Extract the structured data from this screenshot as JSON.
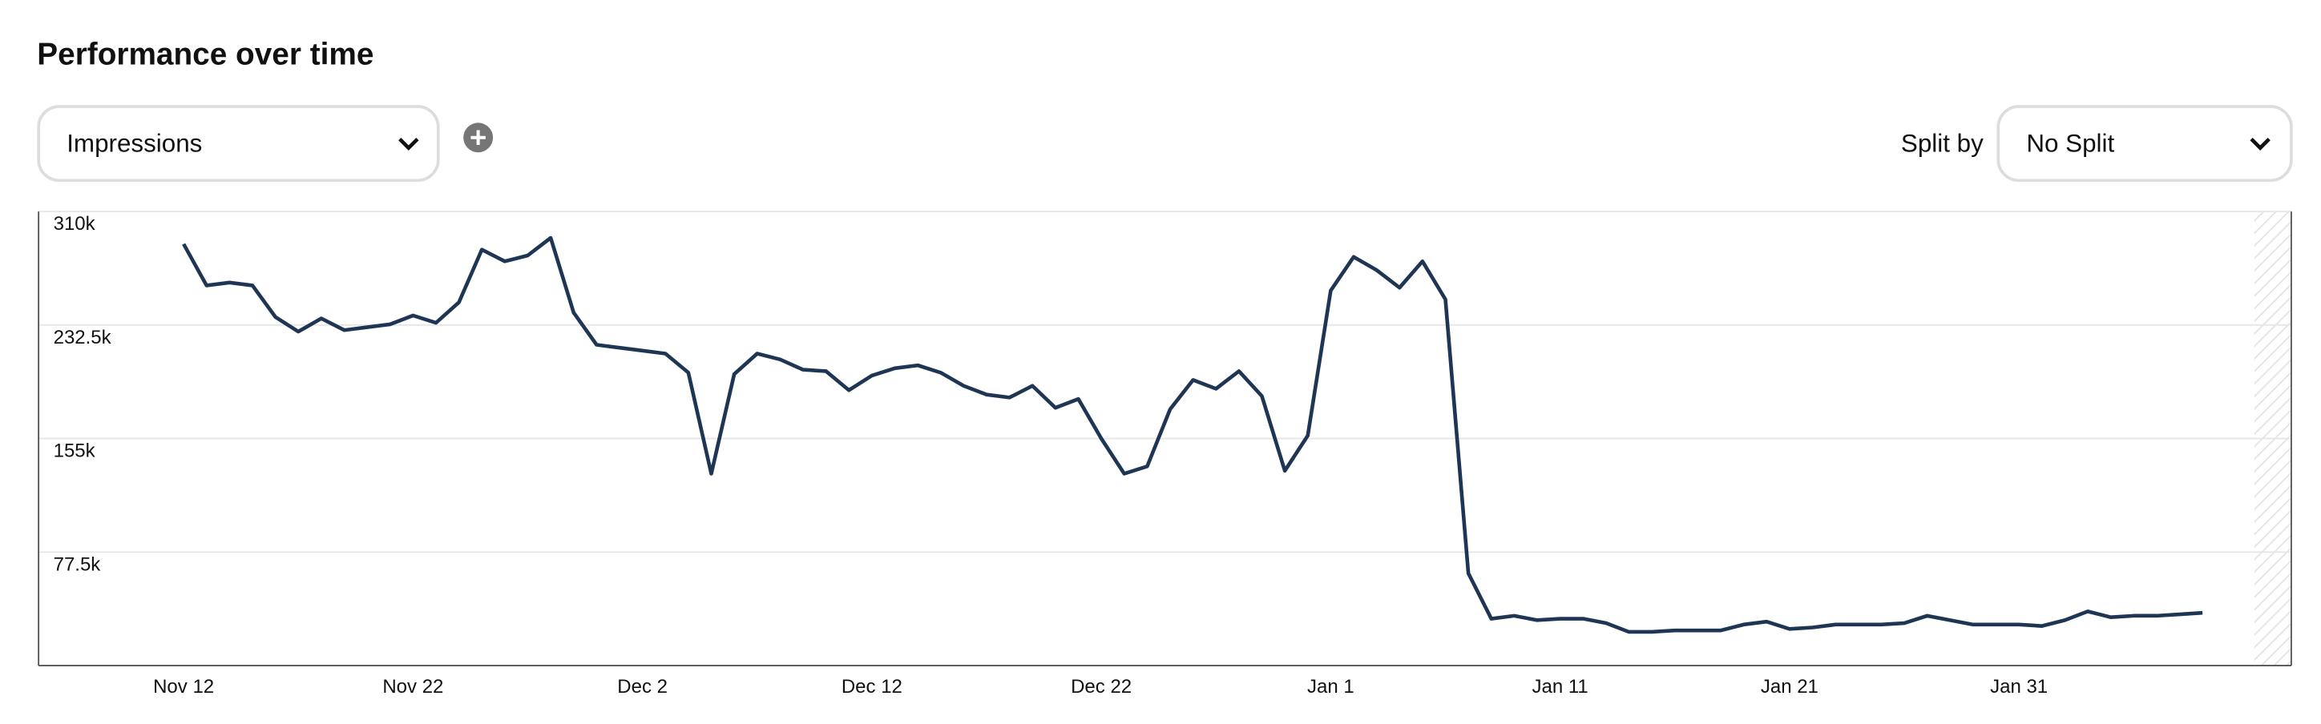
{
  "header": {
    "title": "Performance over time"
  },
  "controls": {
    "metric": "Impressions",
    "split_label": "Split by",
    "split": "No Split"
  },
  "chart_data": {
    "type": "line",
    "categories": [
      "Nov 12",
      null,
      null,
      null,
      null,
      null,
      null,
      null,
      null,
      null,
      "Nov 22",
      null,
      null,
      null,
      null,
      null,
      null,
      null,
      null,
      null,
      "Dec 2",
      null,
      null,
      null,
      null,
      null,
      null,
      null,
      null,
      null,
      "Dec 12",
      null,
      null,
      null,
      null,
      null,
      null,
      null,
      null,
      null,
      "Dec 22",
      null,
      null,
      null,
      null,
      null,
      null,
      null,
      null,
      null,
      "Jan 1",
      null,
      null,
      null,
      null,
      null,
      null,
      null,
      null,
      null,
      "Jan 11",
      null,
      null,
      null,
      null,
      null,
      null,
      null,
      null,
      null,
      "Jan 21",
      null,
      null,
      null,
      null,
      null,
      null,
      null,
      null,
      null,
      "Jan 31",
      null,
      null,
      null,
      null,
      null,
      null,
      null,
      null
    ],
    "series": [
      {
        "name": "Impressions",
        "color": "#1e3553",
        "values": [
          287800,
          259500,
          261500,
          259500,
          238000,
          228000,
          237000,
          229000,
          231000,
          233000,
          239000,
          234000,
          248000,
          284000,
          276000,
          280000,
          292000,
          241000,
          219000,
          217000,
          215000,
          213000,
          200000,
          131000,
          199000,
          213000,
          209000,
          202000,
          201000,
          188000,
          198000,
          203000,
          205000,
          200000,
          191000,
          185000,
          183000,
          191000,
          176000,
          182000,
          155000,
          131000,
          136000,
          175000,
          195000,
          189000,
          201000,
          184000,
          133000,
          157000,
          256000,
          279000,
          270000,
          258000,
          276000,
          250000,
          63000,
          32000,
          34000,
          31000,
          32000,
          32000,
          29000,
          23000,
          23000,
          24000,
          24000,
          24000,
          28000,
          30000,
          25000,
          26000,
          28000,
          28000,
          28000,
          29000,
          34000,
          31000,
          28000,
          28000,
          28000,
          27000,
          31000,
          37000,
          33000,
          34000,
          34000,
          35000,
          36000
        ]
      }
    ],
    "ylim": [
      0,
      310000
    ],
    "yticks": [
      {
        "value": 77500,
        "label": "77.5k"
      },
      {
        "value": 155000,
        "label": "155k"
      },
      {
        "value": 232500,
        "label": "232.5k"
      },
      {
        "value": 310000,
        "label": "310k"
      }
    ],
    "grid": true
  }
}
